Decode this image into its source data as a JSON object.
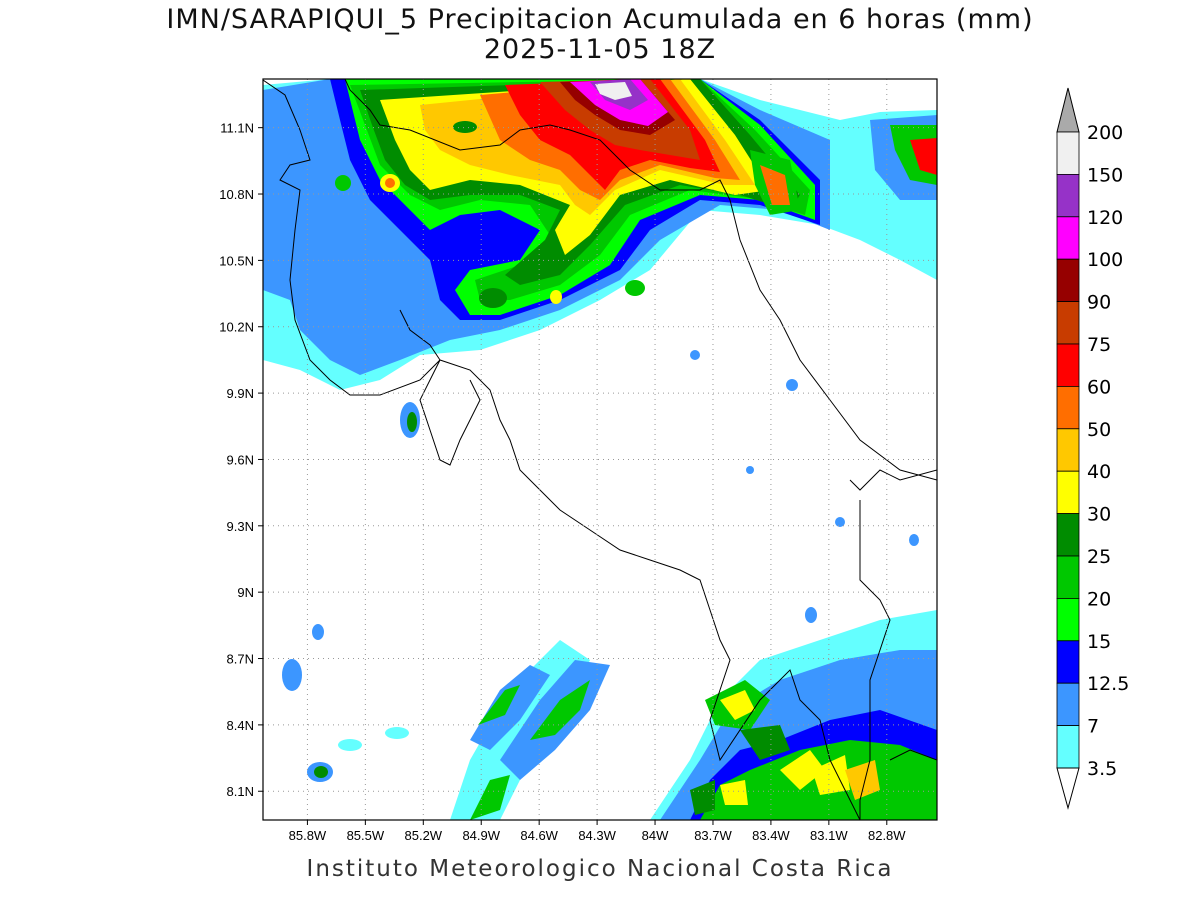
{
  "title": {
    "line1": "IMN/SARAPIQUI_5 Precipitacion Acumulada en 6 horas (mm)",
    "line2": "2025-11-05 18Z"
  },
  "footer": "Instituto Meteorologico Nacional Costa Rica",
  "map": {
    "lon_range": [
      -86.03,
      -82.54
    ],
    "lat_range": [
      7.97,
      11.32
    ],
    "lat_ticks": [
      "11.1N",
      "10.8N",
      "10.5N",
      "10.2N",
      "9.9N",
      "9.6N",
      "9.3N",
      "9N",
      "8.7N",
      "8.4N",
      "8.1N"
    ],
    "lon_ticks": [
      "85.8W",
      "85.5W",
      "85.2W",
      "84.9W",
      "84.6W",
      "84.3W",
      "84W",
      "83.7W",
      "83.4W",
      "83.1W",
      "82.8W"
    ],
    "gridlines": "dotted"
  },
  "colorbar": {
    "levels": [
      "3.5",
      "7",
      "12.5",
      "15",
      "20",
      "25",
      "30",
      "40",
      "50",
      "60",
      "75",
      "90",
      "100",
      "120",
      "150",
      "200"
    ],
    "colors": [
      "#ffffff",
      "#64ffff",
      "#3c96ff",
      "#0000ff",
      "#00ff00",
      "#00c800",
      "#008c00",
      "#ffff00",
      "#ffc800",
      "#ff6e00",
      "#ff0000",
      "#c83c00",
      "#960000",
      "#ff00ff",
      "#9632c8",
      "#f0f0f0",
      "#aaaaaa"
    ],
    "over_color": "#aaaaaa",
    "under_color": "#ffffff"
  }
}
